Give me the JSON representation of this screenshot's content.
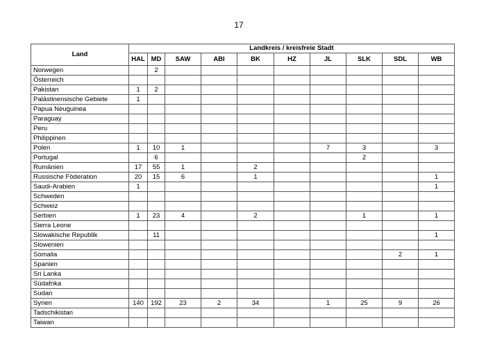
{
  "page_number": "17",
  "table": {
    "row_header": "Land",
    "group_header": "Landkreis / kreisfreie Stadt",
    "columns": [
      "HAL",
      "MD",
      "SAW",
      "ABI",
      "BK",
      "HZ",
      "JL",
      "SLK",
      "SDL",
      "WB"
    ],
    "rows": [
      {
        "land": "Norwegen",
        "values": [
          "",
          "2",
          "",
          "",
          "",
          "",
          "",
          "",
          "",
          ""
        ]
      },
      {
        "land": "Österreich",
        "values": [
          "",
          "",
          "",
          "",
          "",
          "",
          "",
          "",
          "",
          ""
        ]
      },
      {
        "land": "Pakistan",
        "values": [
          "1",
          "2",
          "",
          "",
          "",
          "",
          "",
          "",
          "",
          ""
        ]
      },
      {
        "land": "Palästinensische Gebiete",
        "values": [
          "1",
          "",
          "",
          "",
          "",
          "",
          "",
          "",
          "",
          ""
        ]
      },
      {
        "land": "Papua Neuguinea",
        "values": [
          "",
          "",
          "",
          "",
          "",
          "",
          "",
          "",
          "",
          ""
        ]
      },
      {
        "land": "Paraguay",
        "values": [
          "",
          "",
          "",
          "",
          "",
          "",
          "",
          "",
          "",
          ""
        ]
      },
      {
        "land": "Peru",
        "values": [
          "",
          "",
          "",
          "",
          "",
          "",
          "",
          "",
          "",
          ""
        ]
      },
      {
        "land": "Philippinen",
        "values": [
          "",
          "",
          "",
          "",
          "",
          "",
          "",
          "",
          "",
          ""
        ]
      },
      {
        "land": "Polen",
        "values": [
          "1",
          "10",
          "1",
          "",
          "",
          "",
          "7",
          "3",
          "",
          "3"
        ]
      },
      {
        "land": "Portugal",
        "values": [
          "",
          "6",
          "",
          "",
          "",
          "",
          "",
          "2",
          "",
          ""
        ]
      },
      {
        "land": "Rumänien",
        "values": [
          "17",
          "55",
          "1",
          "",
          "2",
          "",
          "",
          "",
          "",
          ""
        ]
      },
      {
        "land": "Russische Föderation",
        "values": [
          "20",
          "15",
          "6",
          "",
          "1",
          "",
          "",
          "",
          "",
          "1"
        ]
      },
      {
        "land": "Saudi-Arabien",
        "values": [
          "1",
          "",
          "",
          "",
          "",
          "",
          "",
          "",
          "",
          "1"
        ]
      },
      {
        "land": "Schweden",
        "values": [
          "",
          "",
          "",
          "",
          "",
          "",
          "",
          "",
          "",
          ""
        ]
      },
      {
        "land": "Schweiz",
        "values": [
          "",
          "",
          "",
          "",
          "",
          "",
          "",
          "",
          "",
          ""
        ]
      },
      {
        "land": "Serbien",
        "values": [
          "1",
          "23",
          "4",
          "",
          "2",
          "",
          "",
          "1",
          "",
          "1"
        ]
      },
      {
        "land": "Sierra Leone",
        "values": [
          "",
          "",
          "",
          "",
          "",
          "",
          "",
          "",
          "",
          ""
        ]
      },
      {
        "land": "Slowakische Republik",
        "values": [
          "",
          "11",
          "",
          "",
          "",
          "",
          "",
          "",
          "",
          "1"
        ]
      },
      {
        "land": "Slowenien",
        "values": [
          "",
          "",
          "",
          "",
          "",
          "",
          "",
          "",
          "",
          ""
        ]
      },
      {
        "land": "Somalia",
        "values": [
          "",
          "",
          "",
          "",
          "",
          "",
          "",
          "",
          "2",
          "1"
        ]
      },
      {
        "land": "Spanien",
        "values": [
          "",
          "",
          "",
          "",
          "",
          "",
          "",
          "",
          "",
          ""
        ]
      },
      {
        "land": "Sri Lanka",
        "values": [
          "",
          "",
          "",
          "",
          "",
          "",
          "",
          "",
          "",
          ""
        ]
      },
      {
        "land": "Südafrika",
        "values": [
          "",
          "",
          "",
          "",
          "",
          "",
          "",
          "",
          "",
          ""
        ]
      },
      {
        "land": "Sudan",
        "values": [
          "",
          "",
          "",
          "",
          "",
          "",
          "",
          "",
          "",
          ""
        ]
      },
      {
        "land": "Syrien",
        "values": [
          "140",
          "192",
          "23",
          "2",
          "34",
          "",
          "1",
          "25",
          "9",
          "26"
        ]
      },
      {
        "land": "Tadschikistan",
        "values": [
          "",
          "",
          "",
          "",
          "",
          "",
          "",
          "",
          "",
          ""
        ]
      },
      {
        "land": "Taiwan",
        "values": [
          "",
          "",
          "",
          "",
          "",
          "",
          "",
          "",
          "",
          ""
        ]
      }
    ]
  }
}
